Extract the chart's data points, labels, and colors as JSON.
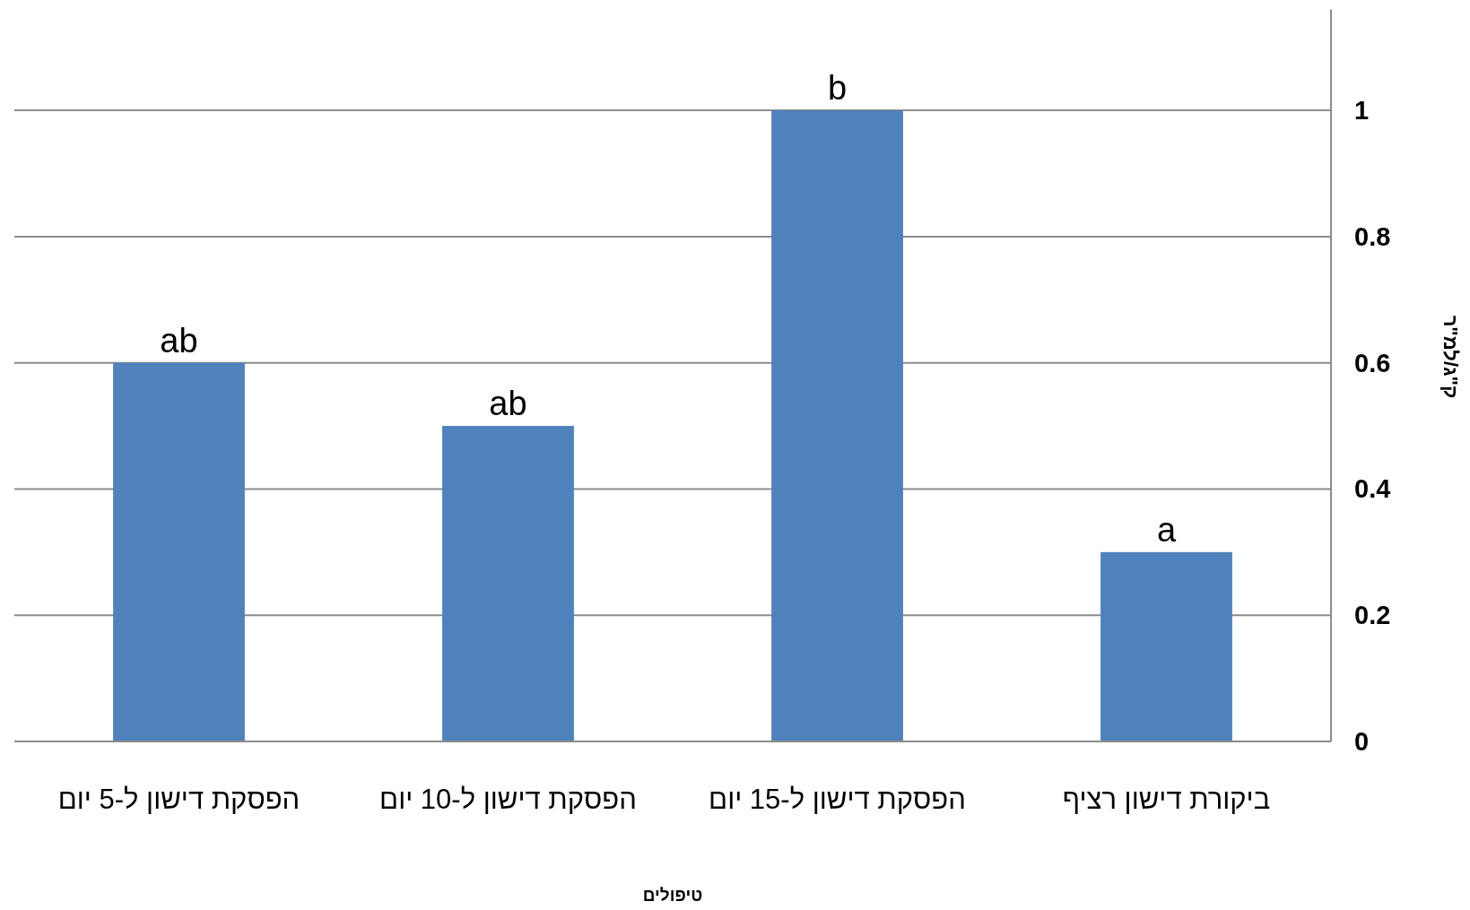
{
  "chart_data": {
    "type": "bar",
    "categories": [
      "הפסקת דישון ל-5 יום",
      "הפסקת דישון ל-10 יום",
      "הפסקת דישון ל-15 יום",
      "ביקורת דישון רציף"
    ],
    "values": [
      0.6,
      0.5,
      1.0,
      0.3
    ],
    "color": "#4f81bd",
    "xlabel": "טיפולים",
    "ylabel": "ק\"ג/למ\"ר",
    "ylim": [
      0,
      1.16
    ],
    "yticks": [
      0,
      0.2,
      0.4,
      0.6,
      0.8,
      1
    ],
    "grid": "y",
    "annotations": [
      {
        "text": "ab",
        "x": "הפסקת דישון ל-5 יום",
        "y": 0.6
      },
      {
        "text": "ab",
        "x": "הפסקת דישון ל-10 יום",
        "y": 0.5
      },
      {
        "text": "b",
        "x": "הפסקת דישון ל-15 יום",
        "y": 1.0
      },
      {
        "text": "a",
        "x": "ביקורת דישון רציף",
        "y": 0.3
      }
    ]
  }
}
